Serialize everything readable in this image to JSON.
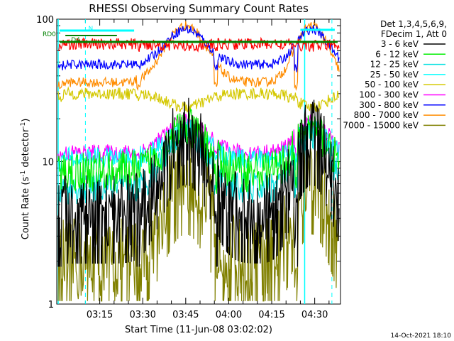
{
  "chart_data": {
    "type": "line",
    "title": "RHESSI Observing Summary Count Rates",
    "xlabel": "Start Time (11-Jun-08 03:02:02)",
    "ylabel": "Count Rate (s",
    "ylabel_sup": "-1",
    "ylabel_tail": " detector",
    "ylabel_sup2": "-1",
    "ylabel_close": ")",
    "y_scale": "log",
    "ylim": [
      1,
      100
    ],
    "y_ticks": [
      "1",
      "10",
      "100"
    ],
    "x_ticks": [
      "03:15",
      "03:30",
      "03:45",
      "04:00",
      "04:15",
      "04:30"
    ],
    "x_tick_minutes": [
      13,
      28,
      43,
      58,
      73,
      88
    ],
    "xlim_minutes": [
      -2,
      97
    ],
    "legend_header": [
      "Det 1,3,4,5,6,9,",
      "FDecim 1, Att 0"
    ],
    "legend_position": "right",
    "annotations": [
      {
        "text": "RD0",
        "color": "#008000"
      },
      {
        "text": "N",
        "color": "#00ffff"
      },
      {
        "text": "D4",
        "color": "#008000"
      }
    ],
    "footer": "14-Oct-2021 18:10",
    "flags": {
      "night_spans_minutes": [
        [
          -2,
          0
        ],
        [
          26,
          27
        ],
        [
          53,
          54
        ],
        [
          81,
          82
        ]
      ],
      "dashed_markers_minutes": [
        8,
        94
      ],
      "solid_markers_minutes": [
        -2,
        84
      ]
    },
    "series": [
      {
        "name": "3 - 6 keV",
        "color": "#000000",
        "day": 4.5,
        "peak": 16,
        "spikes": 1.8
      },
      {
        "name": "6 - 12 keV",
        "color": "#00ee00",
        "day": 8.5,
        "peak": 17,
        "spikes": 1.4
      },
      {
        "name": "12 - 25 keV",
        "color": "#00e0e0",
        "day": 6.5,
        "peak": 16,
        "spikes": 1.3
      },
      {
        "name": "25 - 50 keV",
        "color": "#00ffff",
        "day": 10.5,
        "peak": 16.5,
        "spikes": 1.2
      },
      {
        "name": "50 - 100 keV",
        "color": "#d4c800",
        "day": 30,
        "peak": 24,
        "spikes": 1.1
      },
      {
        "name": "100 - 300 keV",
        "color": "#ff00ff",
        "day": 11.5,
        "peak": 19,
        "spikes": 1.15
      },
      {
        "name": "300 - 800 keV",
        "color": "#0000ff",
        "day": 48,
        "peak": 85,
        "spikes": 1.08
      },
      {
        "name": "800 - 7000 keV",
        "color": "#ff8c00",
        "day": 36,
        "peak": 90,
        "spikes": 1.08
      },
      {
        "name": "7000 - 15000 keV",
        "color": "#808000",
        "day": 2.0,
        "peak": 8,
        "spikes": 2.0
      }
    ],
    "red_series": {
      "color": "#ff0000",
      "day": 67,
      "peak": 65
    }
  }
}
